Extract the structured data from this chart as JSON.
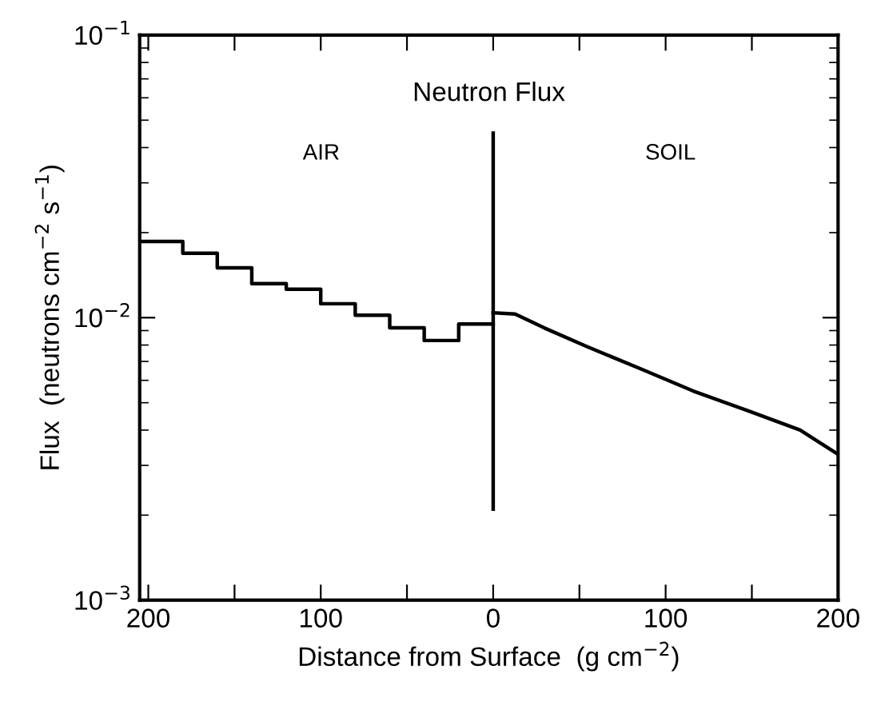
{
  "chart_data": {
    "type": "line",
    "title": "Neutron Flux",
    "xlabel": "Distance from Surface  (g cm$^{−2}$)",
    "ylabel": "Flux  (neutrons cm$^{−2}$ s$^{−1}$)",
    "log": "y",
    "grid": false,
    "legend": false,
    "xlim": [
      -205,
      200
    ],
    "ylim": [
      0.001,
      0.1
    ],
    "xticks": [
      {
        "value": -200,
        "label": "200"
      },
      {
        "value": -150,
        "label": null
      },
      {
        "value": -100,
        "label": "100"
      },
      {
        "value": -50,
        "label": null
      },
      0,
      {
        "value": 50,
        "label": null
      },
      100,
      {
        "value": 150,
        "label": null
      },
      200
    ],
    "yticks": [
      {
        "value": 0.001,
        "label": "10$^{−3}$"
      },
      {
        "value": 0.01,
        "label": "10$^{−2}$"
      },
      {
        "value": 0.1,
        "label": "10$^{−1}$"
      }
    ],
    "annotations": [
      "AIR",
      "SOIL"
    ],
    "series": [
      {
        "type": "step",
        "color": "#000000",
        "x": [
          -205,
          -180,
          -160,
          -140,
          -120,
          -100,
          -80,
          -60,
          -40,
          -20,
          0
        ],
        "values": [
          0.0186,
          0.0169,
          0.015,
          0.0132,
          0.0126,
          0.0112,
          0.0102,
          0.0092,
          0.0083,
          0.0095,
          0.0095
        ]
      },
      {
        "color": "#000000",
        "x": [
          0,
          12.7,
          29.6,
          54.4,
          85.2,
          116,
          147,
          178,
          199.4
        ],
        "values": [
          0.0104,
          0.0103,
          0.0092,
          0.0079,
          0.0066,
          0.0055,
          0.0047,
          0.004,
          0.0033
        ]
      },
      {
        "color": "#000000",
        "x": [
          0,
          0
        ],
        "values": [
          0.045,
          0.0021
        ]
      }
    ]
  }
}
